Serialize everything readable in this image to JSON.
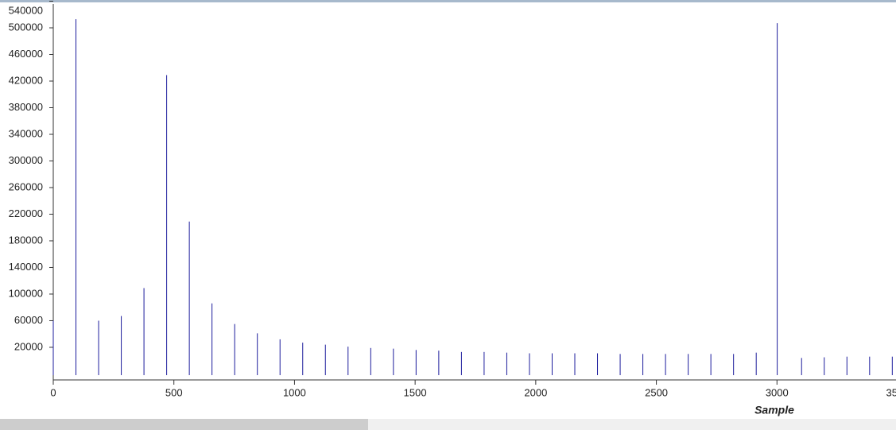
{
  "chart_data": {
    "type": "stem",
    "x_label": "Sample",
    "x": [
      0,
      94,
      188,
      282,
      376,
      470,
      564,
      658,
      752,
      846,
      940,
      1034,
      1128,
      1222,
      1316,
      1410,
      1504,
      1598,
      1692,
      1786,
      1880,
      1974,
      2068,
      2162,
      2256,
      2350,
      2444,
      2538,
      2632,
      2726,
      2820,
      2914,
      3001,
      3102,
      3196,
      3290,
      3384,
      3478
    ],
    "values": [
      60000,
      513000,
      60000,
      67000,
      109000,
      429000,
      209000,
      86000,
      55000,
      41000,
      32000,
      27000,
      24000,
      21000,
      19000,
      18000,
      16000,
      15000,
      13000,
      13000,
      12000,
      11000,
      11000,
      11000,
      11000,
      10000,
      10000,
      10000,
      10000,
      10000,
      10000,
      12000,
      507000,
      4000,
      5000,
      6000,
      6000,
      6000
    ],
    "color": "#1c1c9c",
    "xlim": [
      0,
      3500
    ],
    "xticks": [
      0,
      500,
      1000,
      1500,
      2000,
      2500,
      3000,
      3500
    ],
    "ylim": [
      -29000,
      540000
    ],
    "yticks": [
      20000,
      60000,
      100000,
      140000,
      180000,
      220000,
      260000,
      300000,
      340000,
      380000,
      420000,
      460000,
      500000,
      540000
    ]
  }
}
